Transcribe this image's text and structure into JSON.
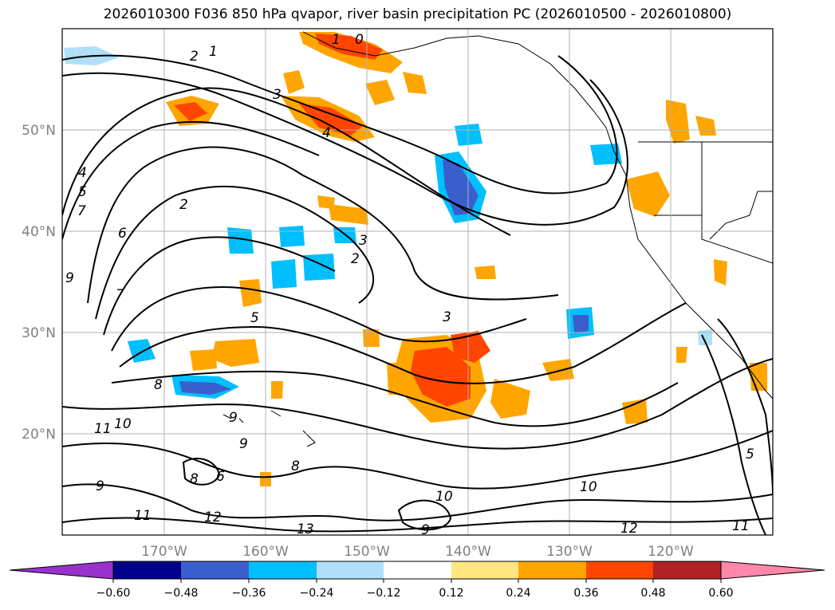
{
  "title": "2026010300 F036 850 hPa qvapor, river basin precipitation PC (2026010500 - 2026010800)",
  "lon_labels": [
    "170°W",
    "160°W",
    "150°W",
    "140°W",
    "130°W",
    "120°W"
  ],
  "lat_labels": [
    "50°N",
    "40°N",
    "30°N",
    "20°N"
  ],
  "colorbar": {
    "ticks": [
      "−0.60",
      "−0.48",
      "−0.36",
      "−0.24",
      "−0.12",
      "0.12",
      "0.24",
      "0.36",
      "0.48",
      "0.60"
    ],
    "colors": [
      "#9932cc",
      "#00008b",
      "#3a5fcd",
      "#00bfff",
      "#afe0f8",
      "#ffffff",
      "#ffe680",
      "#ffa500",
      "#ff4500",
      "#b22222",
      "#ff88aa"
    ]
  },
  "contour_labels": [
    "0",
    "1",
    "1",
    "2",
    "2",
    "2",
    "3",
    "3",
    "3",
    "4",
    "4",
    "5",
    "5",
    "5",
    "6",
    "6",
    "7",
    "7",
    "8",
    "8",
    "8",
    "9",
    "9",
    "9",
    "9",
    "9",
    "10",
    "10",
    "10",
    "11",
    "11",
    "11",
    "12",
    "12",
    "13"
  ]
}
